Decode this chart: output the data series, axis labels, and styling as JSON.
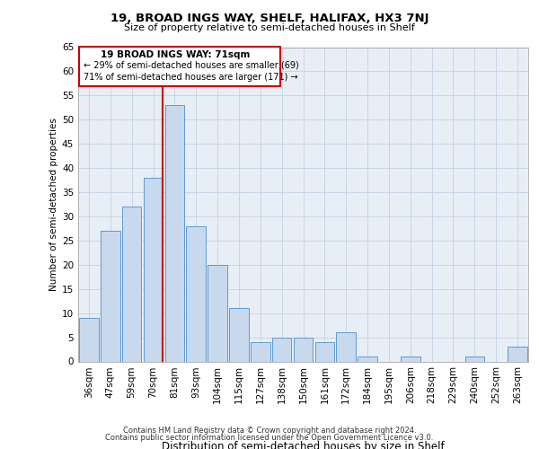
{
  "title": "19, BROAD INGS WAY, SHELF, HALIFAX, HX3 7NJ",
  "subtitle": "Size of property relative to semi-detached houses in Shelf",
  "xlabel_bottom": "Distribution of semi-detached houses by size in Shelf",
  "ylabel": "Number of semi-detached properties",
  "categories": [
    "36sqm",
    "47sqm",
    "59sqm",
    "70sqm",
    "81sqm",
    "93sqm",
    "104sqm",
    "115sqm",
    "127sqm",
    "138sqm",
    "150sqm",
    "161sqm",
    "172sqm",
    "184sqm",
    "195sqm",
    "206sqm",
    "218sqm",
    "229sqm",
    "240sqm",
    "252sqm",
    "263sqm"
  ],
  "values": [
    9,
    27,
    32,
    38,
    53,
    28,
    20,
    11,
    4,
    5,
    5,
    4,
    6,
    1,
    0,
    1,
    0,
    0,
    1,
    0,
    3
  ],
  "bar_color": "#c9d9ed",
  "bar_edge_color": "#5b9bd5",
  "redline_index": 3,
  "annotation_title": "19 BROAD INGS WAY: 71sqm",
  "annotation_line1": "← 29% of semi-detached houses are smaller (69)",
  "annotation_line2": "71% of semi-detached houses are larger (171) →",
  "annotation_box_color": "#ffffff",
  "annotation_box_edge": "#cc0000",
  "redline_color": "#cc0000",
  "ylim": [
    0,
    65
  ],
  "yticks": [
    0,
    5,
    10,
    15,
    20,
    25,
    30,
    35,
    40,
    45,
    50,
    55,
    60,
    65
  ],
  "footer1": "Contains HM Land Registry data © Crown copyright and database right 2024.",
  "footer2": "Contains public sector information licensed under the Open Government Licence v3.0.",
  "bg_color": "#ffffff",
  "grid_color": "#c8d4e8",
  "ax_bg_color": "#e8eef5"
}
